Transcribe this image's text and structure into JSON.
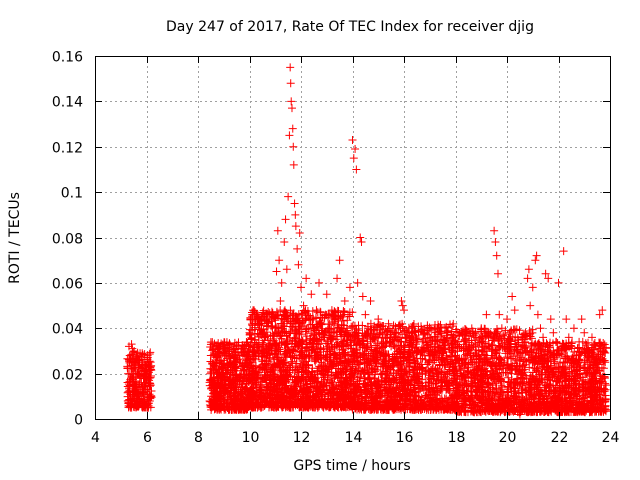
{
  "chart_data": {
    "type": "scatter",
    "title": "Day 247 of 2017, Rate Of TEC Index for receiver djig",
    "xlabel": "GPS time / hours",
    "ylabel": "ROTI / TECUs",
    "xlim": [
      4,
      24
    ],
    "ylim": [
      0,
      0.16
    ],
    "xticks": [
      4,
      6,
      8,
      10,
      12,
      14,
      16,
      18,
      20,
      22,
      24
    ],
    "yticks": [
      0,
      0.02,
      0.04,
      0.06,
      0.08,
      0.1,
      0.12,
      0.14,
      0.16
    ],
    "xtick_labels": [
      "4",
      "6",
      "8",
      "10",
      "12",
      "14",
      "16",
      "18",
      "20",
      "22",
      "24"
    ],
    "ytick_labels": [
      "0",
      "0.02",
      "0.04",
      "0.06",
      "0.08",
      "0.1",
      "0.12",
      "0.14",
      "0.16"
    ],
    "grid": true,
    "marker": "+",
    "marker_color": "#ff0000",
    "series": [
      {
        "values": [
          [
            5.3,
            0.012
          ],
          [
            5.35,
            0.028
          ],
          [
            5.4,
            0.018
          ],
          [
            5.45,
            0.031
          ],
          [
            5.5,
            0.022
          ],
          [
            5.55,
            0.015
          ],
          [
            5.6,
            0.026
          ],
          [
            5.65,
            0.01
          ],
          [
            5.7,
            0.02
          ],
          [
            5.75,
            0.029
          ],
          [
            5.8,
            0.016
          ],
          [
            5.85,
            0.024
          ],
          [
            5.9,
            0.012
          ],
          [
            5.95,
            0.019
          ],
          [
            6.0,
            0.022
          ],
          [
            6.05,
            0.013
          ],
          [
            6.1,
            0.017
          ],
          [
            6.15,
            0.009
          ],
          [
            5.32,
            0.032
          ],
          [
            5.42,
            0.033
          ],
          [
            5.52,
            0.03
          ],
          [
            5.62,
            0.027
          ],
          [
            5.72,
            0.025
          ],
          [
            5.82,
            0.023
          ],
          [
            5.92,
            0.021
          ],
          [
            6.02,
            0.02
          ],
          [
            6.12,
            0.018
          ],
          [
            5.38,
            0.008
          ],
          [
            5.58,
            0.006
          ],
          [
            5.78,
            0.007
          ],
          [
            5.98,
            0.006
          ],
          [
            6.08,
            0.007
          ],
          [
            8.5,
            0.028
          ],
          [
            8.55,
            0.015
          ],
          [
            8.6,
            0.01
          ],
          [
            8.7,
            0.022
          ],
          [
            8.8,
            0.018
          ],
          [
            8.9,
            0.026
          ],
          [
            9.0,
            0.012
          ],
          [
            9.1,
            0.02
          ],
          [
            9.2,
            0.03
          ],
          [
            9.3,
            0.016
          ],
          [
            9.4,
            0.024
          ],
          [
            9.5,
            0.019
          ],
          [
            9.6,
            0.028
          ],
          [
            9.7,
            0.014
          ],
          [
            9.8,
            0.032
          ],
          [
            9.9,
            0.022
          ],
          [
            10.0,
            0.038
          ],
          [
            10.1,
            0.026
          ],
          [
            10.2,
            0.018
          ],
          [
            10.3,
            0.044
          ],
          [
            10.4,
            0.03
          ],
          [
            10.5,
            0.022
          ],
          [
            10.6,
            0.036
          ],
          [
            10.7,
            0.028
          ],
          [
            10.8,
            0.016
          ],
          [
            10.9,
            0.046
          ],
          [
            11.0,
            0.04
          ],
          [
            11.05,
            0.065
          ],
          [
            11.1,
            0.083
          ],
          [
            11.15,
            0.07
          ],
          [
            11.2,
            0.052
          ],
          [
            11.25,
            0.06
          ],
          [
            11.3,
            0.034
          ],
          [
            11.35,
            0.078
          ],
          [
            11.4,
            0.088
          ],
          [
            11.45,
            0.066
          ],
          [
            11.5,
            0.098
          ],
          [
            11.55,
            0.125
          ],
          [
            11.58,
            0.155
          ],
          [
            11.6,
            0.148
          ],
          [
            11.62,
            0.14
          ],
          [
            11.65,
            0.137
          ],
          [
            11.68,
            0.128
          ],
          [
            11.7,
            0.12
          ],
          [
            11.72,
            0.112
          ],
          [
            11.75,
            0.095
          ],
          [
            11.78,
            0.09
          ],
          [
            11.8,
            0.085
          ],
          [
            11.85,
            0.075
          ],
          [
            11.9,
            0.068
          ],
          [
            11.95,
            0.082
          ],
          [
            12.0,
            0.058
          ],
          [
            12.1,
            0.05
          ],
          [
            12.2,
            0.062
          ],
          [
            12.3,
            0.045
          ],
          [
            12.4,
            0.055
          ],
          [
            12.5,
            0.04
          ],
          [
            12.6,
            0.048
          ],
          [
            12.7,
            0.06
          ],
          [
            12.8,
            0.042
          ],
          [
            12.9,
            0.036
          ],
          [
            13.0,
            0.055
          ],
          [
            13.1,
            0.04
          ],
          [
            13.2,
            0.048
          ],
          [
            13.3,
            0.032
          ],
          [
            13.4,
            0.062
          ],
          [
            13.5,
            0.07
          ],
          [
            13.6,
            0.045
          ],
          [
            13.7,
            0.052
          ],
          [
            13.8,
            0.038
          ],
          [
            13.9,
            0.058
          ],
          [
            14.0,
            0.123
          ],
          [
            14.05,
            0.115
          ],
          [
            14.1,
            0.119
          ],
          [
            14.15,
            0.11
          ],
          [
            14.2,
            0.06
          ],
          [
            14.3,
            0.08
          ],
          [
            14.35,
            0.078
          ],
          [
            14.4,
            0.054
          ],
          [
            14.5,
            0.046
          ],
          [
            14.6,
            0.04
          ],
          [
            14.7,
            0.052
          ],
          [
            14.8,
            0.036
          ],
          [
            14.9,
            0.03
          ],
          [
            15.0,
            0.044
          ],
          [
            15.1,
            0.038
          ],
          [
            15.2,
            0.034
          ],
          [
            15.3,
            0.028
          ],
          [
            15.4,
            0.042
          ],
          [
            15.5,
            0.032
          ],
          [
            15.6,
            0.026
          ],
          [
            15.7,
            0.038
          ],
          [
            15.8,
            0.03
          ],
          [
            15.9,
            0.052
          ],
          [
            15.95,
            0.05
          ],
          [
            16.0,
            0.048
          ],
          [
            16.1,
            0.036
          ],
          [
            16.2,
            0.03
          ],
          [
            16.3,
            0.04
          ],
          [
            16.4,
            0.026
          ],
          [
            16.5,
            0.034
          ],
          [
            16.6,
            0.022
          ],
          [
            16.7,
            0.03
          ],
          [
            16.8,
            0.038
          ],
          [
            16.9,
            0.024
          ],
          [
            17.0,
            0.036
          ],
          [
            17.1,
            0.028
          ],
          [
            17.2,
            0.032
          ],
          [
            17.3,
            0.04
          ],
          [
            17.4,
            0.034
          ],
          [
            17.5,
            0.03
          ],
          [
            17.6,
            0.026
          ],
          [
            17.7,
            0.038
          ],
          [
            17.8,
            0.024
          ],
          [
            17.9,
            0.03
          ],
          [
            18.0,
            0.028
          ],
          [
            18.1,
            0.034
          ],
          [
            18.2,
            0.02
          ],
          [
            18.3,
            0.026
          ],
          [
            18.4,
            0.018
          ],
          [
            18.5,
            0.024
          ],
          [
            18.6,
            0.028
          ],
          [
            18.7,
            0.032
          ],
          [
            18.8,
            0.036
          ],
          [
            18.9,
            0.03
          ],
          [
            19.0,
            0.04
          ],
          [
            19.1,
            0.034
          ],
          [
            19.2,
            0.046
          ],
          [
            19.3,
            0.038
          ],
          [
            19.4,
            0.028
          ],
          [
            19.5,
            0.083
          ],
          [
            19.55,
            0.078
          ],
          [
            19.6,
            0.072
          ],
          [
            19.65,
            0.064
          ],
          [
            19.7,
            0.046
          ],
          [
            19.8,
            0.04
          ],
          [
            19.9,
            0.032
          ],
          [
            20.0,
            0.044
          ],
          [
            20.1,
            0.038
          ],
          [
            20.2,
            0.054
          ],
          [
            20.3,
            0.048
          ],
          [
            20.4,
            0.03
          ],
          [
            20.5,
            0.026
          ],
          [
            20.6,
            0.02
          ],
          [
            20.7,
            0.034
          ],
          [
            20.8,
            0.062
          ],
          [
            20.85,
            0.066
          ],
          [
            20.9,
            0.05
          ],
          [
            21.0,
            0.058
          ],
          [
            21.1,
            0.07
          ],
          [
            21.15,
            0.072
          ],
          [
            21.2,
            0.046
          ],
          [
            21.3,
            0.04
          ],
          [
            21.4,
            0.036
          ],
          [
            21.5,
            0.064
          ],
          [
            21.6,
            0.062
          ],
          [
            21.7,
            0.044
          ],
          [
            21.8,
            0.038
          ],
          [
            21.9,
            0.034
          ],
          [
            22.0,
            0.06
          ],
          [
            22.1,
            0.03
          ],
          [
            22.2,
            0.074
          ],
          [
            22.3,
            0.044
          ],
          [
            22.4,
            0.036
          ],
          [
            22.5,
            0.032
          ],
          [
            22.6,
            0.04
          ],
          [
            22.7,
            0.028
          ],
          [
            22.8,
            0.034
          ],
          [
            22.9,
            0.044
          ],
          [
            23.0,
            0.038
          ],
          [
            23.1,
            0.03
          ],
          [
            23.2,
            0.026
          ],
          [
            23.3,
            0.036
          ],
          [
            23.4,
            0.02
          ],
          [
            23.5,
            0.024
          ],
          [
            23.6,
            0.046
          ],
          [
            23.7,
            0.048
          ],
          [
            23.75,
            0.03
          ],
          [
            23.8,
            0.018
          ],
          [
            8.7,
            0.006
          ],
          [
            9.3,
            0.004
          ],
          [
            10.1,
            0.005
          ],
          [
            11.0,
            0.007
          ],
          [
            12.0,
            0.008
          ],
          [
            13.0,
            0.006
          ],
          [
            14.0,
            0.007
          ],
          [
            15.0,
            0.006
          ],
          [
            16.0,
            0.005
          ],
          [
            17.0,
            0.006
          ],
          [
            18.0,
            0.005
          ],
          [
            19.0,
            0.006
          ],
          [
            20.5,
            0.002
          ],
          [
            21.0,
            0.004
          ],
          [
            22.0,
            0.005
          ],
          [
            23.0,
            0.004
          ],
          [
            23.8,
            0.004
          ]
        ]
      }
    ],
    "band_density": [
      {
        "x_from": 5.25,
        "x_to": 6.2,
        "y_from": 0.005,
        "y_to": 0.03,
        "count": 260
      },
      {
        "x_from": 8.45,
        "x_to": 10.0,
        "y_from": 0.004,
        "y_to": 0.034,
        "count": 600
      },
      {
        "x_from": 10.0,
        "x_to": 14.0,
        "y_from": 0.005,
        "y_to": 0.048,
        "count": 1700
      },
      {
        "x_from": 14.0,
        "x_to": 18.0,
        "y_from": 0.004,
        "y_to": 0.042,
        "count": 1400
      },
      {
        "x_from": 18.0,
        "x_to": 21.0,
        "y_from": 0.003,
        "y_to": 0.04,
        "count": 1000
      },
      {
        "x_from": 21.0,
        "x_to": 23.85,
        "y_from": 0.003,
        "y_to": 0.034,
        "count": 1000
      }
    ]
  }
}
